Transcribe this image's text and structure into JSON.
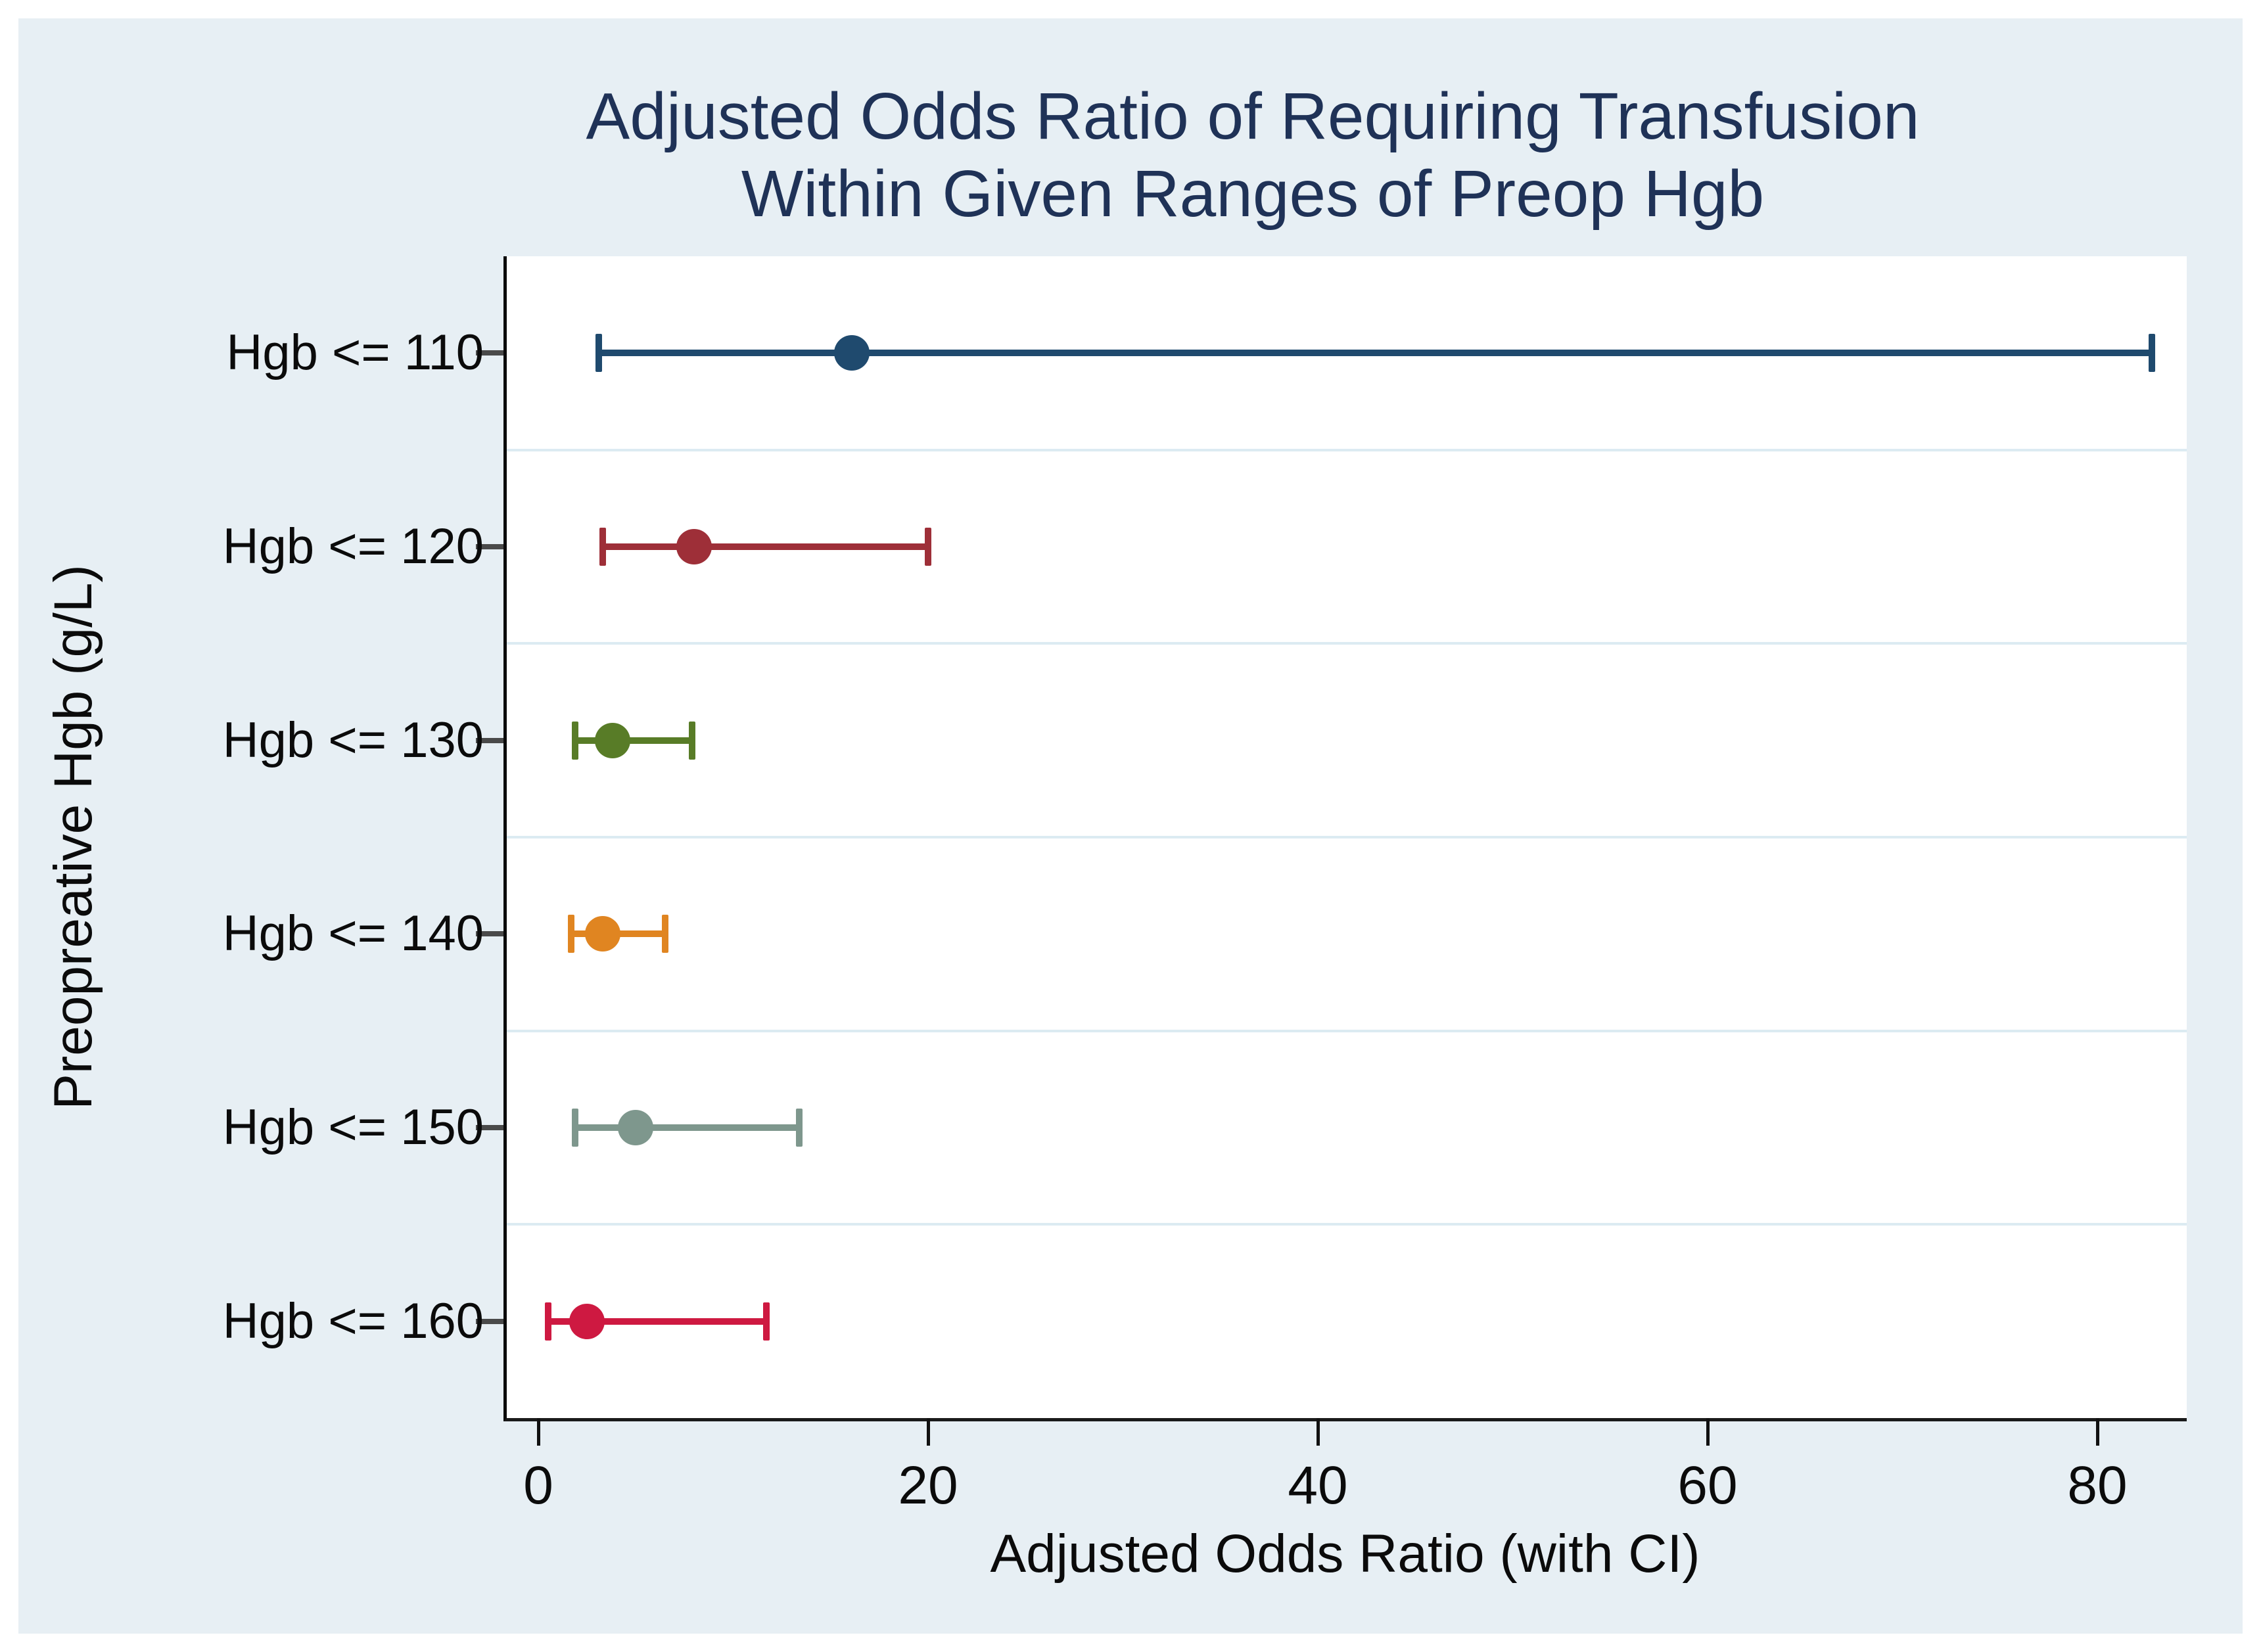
{
  "page": {
    "background_color": "#ffffff",
    "panel_background_color": "#e7eff4"
  },
  "chart_data": {
    "type": "scatter",
    "subtype": "forest-plot-odds-ratio-with-ci",
    "title": "Adjusted Odds Ratio of Requiring Transfusion Within Given Ranges of Preop Hgb",
    "title_lines": [
      "Adjusted Odds Ratio of Requiring Transfusion",
      "Within Given Ranges of Preop Hgb"
    ],
    "title_color": "#1f3257",
    "xlabel": "Adjusted Odds Ratio (with CI)",
    "ylabel": "Preopreative Hgb (g/L)",
    "x_ticks": [
      0,
      20,
      40,
      60,
      80
    ],
    "xlim": [
      -1.6,
      84.6
    ],
    "grid": "horizontal row separators only",
    "legend": "none",
    "categories": [
      "Hgb <= 110",
      "Hgb <= 120",
      "Hgb <= 130",
      "Hgb <= 140",
      "Hgb <= 150",
      "Hgb <= 160"
    ],
    "series": [
      {
        "category": "Hgb <= 110",
        "odds_ratio": 16.1,
        "ci_low": 3.1,
        "ci_high": 82.8,
        "color": "#1f4a6e"
      },
      {
        "category": "Hgb <= 120",
        "odds_ratio": 8.0,
        "ci_low": 3.3,
        "ci_high": 20.0,
        "color": "#9e2f38"
      },
      {
        "category": "Hgb <= 130",
        "odds_ratio": 3.8,
        "ci_low": 1.9,
        "ci_high": 7.9,
        "color": "#587c27"
      },
      {
        "category": "Hgb <= 140",
        "odds_ratio": 3.3,
        "ci_low": 1.7,
        "ci_high": 6.5,
        "color": "#e08521"
      },
      {
        "category": "Hgb <= 150",
        "odds_ratio": 5.0,
        "ci_low": 1.9,
        "ci_high": 13.4,
        "color": "#7e978d"
      },
      {
        "category": "Hgb <= 160",
        "odds_ratio": 2.5,
        "ci_low": 0.5,
        "ci_high": 11.7,
        "color": "#ce1941"
      }
    ]
  }
}
